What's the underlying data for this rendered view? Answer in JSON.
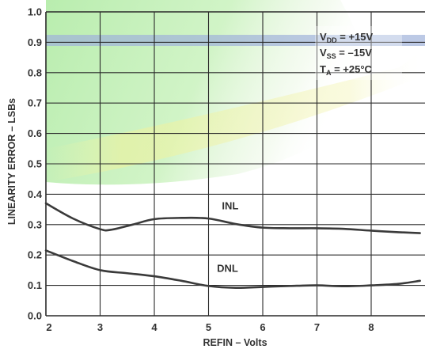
{
  "chart_data": {
    "type": "line",
    "title": "",
    "xlabel": "REFIN – Volts",
    "ylabel": "LINEARITY ERROR – LSBs",
    "xlim": [
      2,
      8.9
    ],
    "ylim": [
      0,
      1.0
    ],
    "x_ticks": [
      "2",
      "3",
      "4",
      "5",
      "6",
      "7",
      "8"
    ],
    "y_ticks": [
      "0.0",
      "0.1",
      "0.2",
      "0.3",
      "0.4",
      "0.5",
      "0.6",
      "0.7",
      "0.8",
      "0.9",
      "1.0"
    ],
    "grid": true,
    "conditions": [
      {
        "symbol": "V",
        "sub": "DD",
        "rest": " = +15V"
      },
      {
        "symbol": "V",
        "sub": "SS",
        "rest": " = –15V"
      },
      {
        "symbol": "T",
        "sub": "A",
        "rest": " = +25°C"
      }
    ],
    "series": [
      {
        "name": "INL",
        "x": [
          2.0,
          2.5,
          3.0,
          3.2,
          3.6,
          4.0,
          4.5,
          5.0,
          5.5,
          6.0,
          6.5,
          7.0,
          7.5,
          8.0,
          8.5,
          8.9
        ],
        "values": [
          0.37,
          0.32,
          0.285,
          0.283,
          0.3,
          0.318,
          0.322,
          0.32,
          0.302,
          0.29,
          0.288,
          0.288,
          0.286,
          0.28,
          0.275,
          0.272
        ]
      },
      {
        "name": "DNL",
        "x": [
          2.0,
          2.5,
          3.0,
          3.5,
          4.0,
          4.5,
          5.0,
          5.5,
          6.0,
          6.5,
          7.0,
          7.5,
          8.0,
          8.5,
          8.9
        ],
        "values": [
          0.215,
          0.18,
          0.15,
          0.14,
          0.13,
          0.115,
          0.098,
          0.092,
          0.095,
          0.098,
          0.1,
          0.097,
          0.1,
          0.105,
          0.115
        ]
      }
    ],
    "series_label_positions": [
      {
        "name": "INL",
        "x": 5.4,
        "y": 0.35
      },
      {
        "name": "DNL",
        "x": 5.35,
        "y": 0.145
      }
    ]
  },
  "colors": {
    "grid": "#2a2a2a",
    "line": "#3a3a3a",
    "text": "#333333",
    "highlight_green": "#bff0b0",
    "highlight_band": "#aab8d8"
  }
}
